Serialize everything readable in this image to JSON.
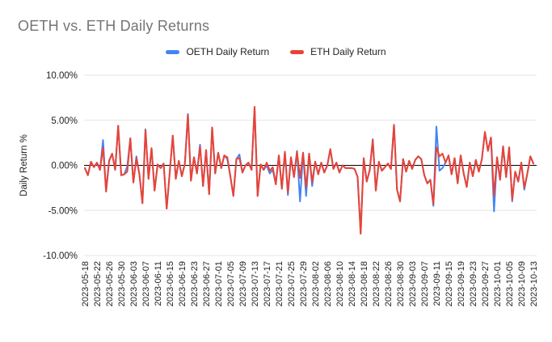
{
  "chart": {
    "title": "OETH vs. ETH Daily Returns",
    "title_color": "#757575",
    "axis_text_color": "#222222",
    "gridline_color": "#e6e6e6",
    "zero_line_color": "#000000",
    "background_color": "#ffffff"
  },
  "chart_data": {
    "type": "line",
    "title": "OETH vs. ETH Daily Returns",
    "xlabel": "",
    "ylabel": "Daily Return %",
    "ylim": [
      -10,
      10
    ],
    "grid": true,
    "legend_position": "top",
    "x_tick_every": 4,
    "y_tick_values": [
      10,
      5,
      0,
      -5,
      -10
    ],
    "y_tick_labels": [
      "10.00%",
      "5.00%",
      "0.00%",
      "-5.00%",
      "-10.00%"
    ],
    "x": [
      "2023-05-18",
      "2023-05-19",
      "2023-05-20",
      "2023-05-21",
      "2023-05-22",
      "2023-05-23",
      "2023-05-24",
      "2023-05-25",
      "2023-05-26",
      "2023-05-27",
      "2023-05-28",
      "2023-05-29",
      "2023-05-30",
      "2023-05-31",
      "2023-06-01",
      "2023-06-02",
      "2023-06-03",
      "2023-06-04",
      "2023-06-05",
      "2023-06-06",
      "2023-06-07",
      "2023-06-08",
      "2023-06-09",
      "2023-06-10",
      "2023-06-11",
      "2023-06-12",
      "2023-06-13",
      "2023-06-14",
      "2023-06-15",
      "2023-06-16",
      "2023-06-17",
      "2023-06-18",
      "2023-06-19",
      "2023-06-20",
      "2023-06-21",
      "2023-06-22",
      "2023-06-23",
      "2023-06-24",
      "2023-06-25",
      "2023-06-26",
      "2023-06-27",
      "2023-06-28",
      "2023-06-29",
      "2023-06-30",
      "2023-07-01",
      "2023-07-02",
      "2023-07-03",
      "2023-07-04",
      "2023-07-05",
      "2023-07-06",
      "2023-07-07",
      "2023-07-08",
      "2023-07-09",
      "2023-07-10",
      "2023-07-11",
      "2023-07-12",
      "2023-07-13",
      "2023-07-14",
      "2023-07-15",
      "2023-07-16",
      "2023-07-17",
      "2023-07-18",
      "2023-07-19",
      "2023-07-20",
      "2023-07-21",
      "2023-07-22",
      "2023-07-23",
      "2023-07-24",
      "2023-07-25",
      "2023-07-26",
      "2023-07-27",
      "2023-07-28",
      "2023-07-29",
      "2023-07-30",
      "2023-07-31",
      "2023-08-01",
      "2023-08-02",
      "2023-08-03",
      "2023-08-04",
      "2023-08-05",
      "2023-08-06",
      "2023-08-07",
      "2023-08-08",
      "2023-08-09",
      "2023-08-10",
      "2023-08-11",
      "2023-08-12",
      "2023-08-13",
      "2023-08-14",
      "2023-08-15",
      "2023-08-16",
      "2023-08-17",
      "2023-08-18",
      "2023-08-19",
      "2023-08-20",
      "2023-08-21",
      "2023-08-22",
      "2023-08-23",
      "2023-08-24",
      "2023-08-25",
      "2023-08-26",
      "2023-08-27",
      "2023-08-28",
      "2023-08-29",
      "2023-08-30",
      "2023-08-31",
      "2023-09-01",
      "2023-09-02",
      "2023-09-03",
      "2023-09-04",
      "2023-09-05",
      "2023-09-06",
      "2023-09-07",
      "2023-09-08",
      "2023-09-09",
      "2023-09-10",
      "2023-09-11",
      "2023-09-12",
      "2023-09-13",
      "2023-09-14",
      "2023-09-15",
      "2023-09-16",
      "2023-09-17",
      "2023-09-18",
      "2023-09-19",
      "2023-09-20",
      "2023-09-21",
      "2023-09-22",
      "2023-09-23",
      "2023-09-24",
      "2023-09-25",
      "2023-09-26",
      "2023-09-27",
      "2023-09-28",
      "2023-09-29",
      "2023-09-30",
      "2023-10-01",
      "2023-10-02",
      "2023-10-03",
      "2023-10-04",
      "2023-10-05",
      "2023-10-06",
      "2023-10-07",
      "2023-10-08",
      "2023-10-09",
      "2023-10-10",
      "2023-10-11",
      "2023-10-12",
      "2023-10-13"
    ],
    "series": [
      {
        "name": "OETH Daily Return",
        "color": "#4285F4",
        "values": [
          -0.3,
          -1.1,
          0.4,
          -0.2,
          0.3,
          -0.5,
          2.8,
          -2.9,
          0.5,
          1.3,
          -0.5,
          4.4,
          -1.1,
          -1.0,
          -0.1,
          3.0,
          -1.9,
          1.0,
          -1.0,
          -4.2,
          4.0,
          -1.5,
          1.9,
          -2.8,
          0.1,
          -0.3,
          0.2,
          -4.8,
          -0.8,
          3.3,
          -1.5,
          0.5,
          -1.2,
          0.2,
          5.7,
          -1.7,
          0.9,
          -0.9,
          2.3,
          -2.3,
          1.7,
          -3.2,
          4.2,
          -0.9,
          1.4,
          -0.3,
          1.1,
          0.7,
          -1.2,
          -3.4,
          0.7,
          1.2,
          -0.8,
          0.0,
          0.3,
          -0.5,
          6.4,
          -3.4,
          0.1,
          -0.5,
          0.0,
          -0.9,
          -0.5,
          -2.1,
          1.1,
          -2.6,
          1.5,
          -3.3,
          0.9,
          -1.3,
          1.6,
          -4.0,
          1.4,
          -3.4,
          1.3,
          -2.3,
          0.4,
          -1.0,
          0.3,
          -0.8,
          0.0,
          1.8,
          -0.4,
          0.3,
          -0.8,
          0.0,
          -0.3,
          -0.3,
          -0.3,
          -0.4,
          -1.3,
          -7.5,
          0.8,
          -1.8,
          -0.5,
          2.9,
          -2.8,
          0.4,
          -0.6,
          -0.2,
          0.2,
          -0.4,
          4.5,
          -2.7,
          -4.0,
          0.7,
          -0.7,
          0.5,
          -0.4,
          0.6,
          1.0,
          0.7,
          -1.1,
          -2.0,
          -1.6,
          -4.5,
          4.3,
          -0.6,
          -0.3,
          0.3,
          1.1,
          -1.0,
          0.8,
          -2.0,
          1.1,
          -0.9,
          -2.4,
          0.3,
          -1.2,
          0.6,
          -0.7,
          0.7,
          3.7,
          1.6,
          3.1,
          -5.1,
          0.9,
          -1.6,
          2.1,
          -1.3,
          2.0,
          -4.0,
          -0.7,
          -1.8,
          0.3,
          -2.7,
          -0.9,
          1.0,
          0.2
        ]
      },
      {
        "name": "ETH Daily Return",
        "color": "#EA4335",
        "values": [
          -0.3,
          -1.1,
          0.4,
          -0.2,
          0.3,
          -0.5,
          2.0,
          -2.9,
          0.5,
          1.3,
          -0.5,
          4.4,
          -1.1,
          -1.0,
          -0.7,
          3.0,
          -1.9,
          0.8,
          -1.0,
          -4.2,
          3.9,
          -1.5,
          1.9,
          -2.8,
          0.1,
          -0.3,
          0.2,
          -4.8,
          -0.8,
          3.3,
          -1.5,
          0.5,
          -1.2,
          0.2,
          5.6,
          -1.7,
          0.9,
          -0.9,
          2.1,
          -2.3,
          1.7,
          -3.2,
          4.2,
          -0.9,
          1.4,
          -0.3,
          1.1,
          0.9,
          -1.2,
          -3.4,
          0.7,
          0.8,
          -0.8,
          0.0,
          0.3,
          -0.5,
          6.5,
          -3.4,
          0.1,
          -0.5,
          0.3,
          -0.6,
          -0.2,
          -2.1,
          1.1,
          -2.6,
          1.5,
          -3.0,
          0.9,
          -1.3,
          1.5,
          -1.4,
          1.4,
          -2.5,
          1.3,
          -1.9,
          0.4,
          -1.0,
          0.3,
          -0.8,
          0.0,
          1.8,
          -0.4,
          0.3,
          -0.8,
          0.0,
          -0.3,
          -0.3,
          -0.3,
          -0.4,
          -1.3,
          -7.6,
          0.8,
          -1.8,
          -0.5,
          2.8,
          -2.8,
          0.4,
          -0.6,
          -0.2,
          0.2,
          -0.4,
          4.5,
          -2.7,
          -4.0,
          0.7,
          -0.7,
          0.5,
          -0.4,
          0.6,
          1.0,
          0.7,
          -1.1,
          -2.0,
          -1.6,
          -4.3,
          2.0,
          1.0,
          1.3,
          0.3,
          1.1,
          -1.0,
          0.8,
          -2.0,
          1.1,
          -0.9,
          -2.4,
          0.3,
          -1.2,
          0.6,
          -0.7,
          0.7,
          3.7,
          1.6,
          3.1,
          -3.4,
          0.9,
          -1.6,
          2.1,
          -1.3,
          2.0,
          -3.8,
          -0.7,
          -1.8,
          0.3,
          -2.5,
          -0.9,
          1.0,
          0.2
        ]
      }
    ]
  }
}
